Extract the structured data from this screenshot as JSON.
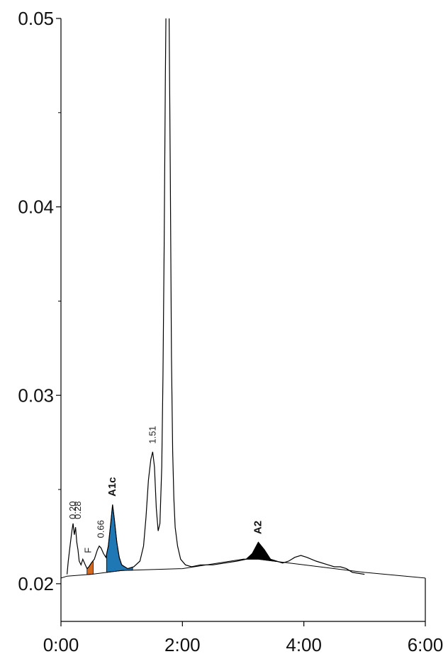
{
  "chart_data": {
    "type": "line",
    "title": "",
    "xlabel": "",
    "ylabel": "",
    "xlim": [
      0,
      6
    ],
    "ylim": [
      0.018,
      0.05
    ],
    "x_ticks": [
      {
        "value": 0,
        "label": "0:00"
      },
      {
        "value": 2,
        "label": "2:00"
      },
      {
        "value": 4,
        "label": "4:00"
      },
      {
        "value": 6,
        "label": "6:00"
      }
    ],
    "y_ticks": [
      {
        "value": 0.02,
        "label": "0.02"
      },
      {
        "value": 0.03,
        "label": "0.03"
      },
      {
        "value": 0.04,
        "label": "0.04"
      },
      {
        "value": 0.05,
        "label": "0.05"
      }
    ],
    "y_minor_ticks": [
      0.025,
      0.035,
      0.045
    ],
    "signal": {
      "x": [
        0.1,
        0.12,
        0.15,
        0.18,
        0.2,
        0.22,
        0.24,
        0.26,
        0.28,
        0.3,
        0.33,
        0.36,
        0.4,
        0.43,
        0.46,
        0.5,
        0.55,
        0.6,
        0.63,
        0.66,
        0.7,
        0.74,
        0.78,
        0.82,
        0.85,
        0.88,
        0.92,
        0.96,
        1.0,
        1.05,
        1.1,
        1.2,
        1.3,
        1.36,
        1.4,
        1.44,
        1.48,
        1.51,
        1.54,
        1.57,
        1.6,
        1.63,
        1.66,
        1.68,
        1.7,
        1.72,
        1.73,
        1.75,
        1.78,
        1.8,
        1.82,
        1.84,
        1.86,
        1.88,
        1.92,
        1.97,
        2.05,
        2.15,
        2.3,
        2.5,
        2.7,
        2.9,
        3.05,
        3.15,
        3.25,
        3.35,
        3.45,
        3.55,
        3.65,
        3.75,
        3.85,
        3.95,
        4.05,
        4.2,
        4.4,
        4.5,
        4.6,
        4.7,
        4.8,
        5.0
      ],
      "y": [
        0.0205,
        0.0212,
        0.022,
        0.0228,
        0.0232,
        0.0226,
        0.023,
        0.0222,
        0.0218,
        0.0212,
        0.021,
        0.0213,
        0.021,
        0.0208,
        0.0209,
        0.0211,
        0.0213,
        0.0218,
        0.022,
        0.0219,
        0.0216,
        0.0214,
        0.022,
        0.0232,
        0.0242,
        0.0234,
        0.0222,
        0.0214,
        0.021,
        0.0209,
        0.0208,
        0.0209,
        0.0212,
        0.022,
        0.0235,
        0.0255,
        0.0266,
        0.027,
        0.0262,
        0.024,
        0.0228,
        0.0232,
        0.0262,
        0.031,
        0.038,
        0.047,
        0.0505,
        0.0505,
        0.0505,
        0.042,
        0.032,
        0.027,
        0.0245,
        0.023,
        0.022,
        0.0213,
        0.021,
        0.0209,
        0.021,
        0.021,
        0.0211,
        0.0212,
        0.0213,
        0.0216,
        0.0222,
        0.0218,
        0.0213,
        0.0212,
        0.0211,
        0.0212,
        0.0214,
        0.0215,
        0.0214,
        0.0212,
        0.021,
        0.0209,
        0.0209,
        0.0208,
        0.0206,
        0.0205
      ]
    },
    "baseline": {
      "x": [
        0.0,
        0.1,
        0.5,
        1.0,
        2.0,
        3.0,
        3.25,
        4.0,
        5.0,
        6.0
      ],
      "y": [
        0.0203,
        0.0204,
        0.0205,
        0.0207,
        0.0208,
        0.0213,
        0.0213,
        0.021,
        0.0206,
        0.0203
      ]
    },
    "shaded_peaks": [
      {
        "label": "A1c",
        "x_start": 0.75,
        "x_end": 1.18,
        "color": "#1f77b4"
      },
      {
        "label": "A2",
        "x_start": 3.0,
        "x_end": 3.55,
        "color": "#000000"
      },
      {
        "label": "F",
        "x_start": 0.43,
        "x_end": 0.53,
        "color": "#d2691e"
      }
    ],
    "peak_labels": [
      {
        "text": "0.20",
        "x": 0.2,
        "y": 0.0232,
        "bold": false
      },
      {
        "text": "0.28",
        "x": 0.28,
        "y": 0.0232,
        "bold": false
      },
      {
        "text": "F",
        "x": 0.45,
        "y": 0.0214,
        "bold": false
      },
      {
        "text": "0.66",
        "x": 0.66,
        "y": 0.0222,
        "bold": false
      },
      {
        "text": "A1c",
        "x": 0.85,
        "y": 0.0244,
        "bold": true
      },
      {
        "text": "1.51",
        "x": 1.51,
        "y": 0.0272,
        "bold": false
      },
      {
        "text": "A2",
        "x": 3.25,
        "y": 0.0224,
        "bold": true
      }
    ],
    "grid": false,
    "legend": "none"
  }
}
